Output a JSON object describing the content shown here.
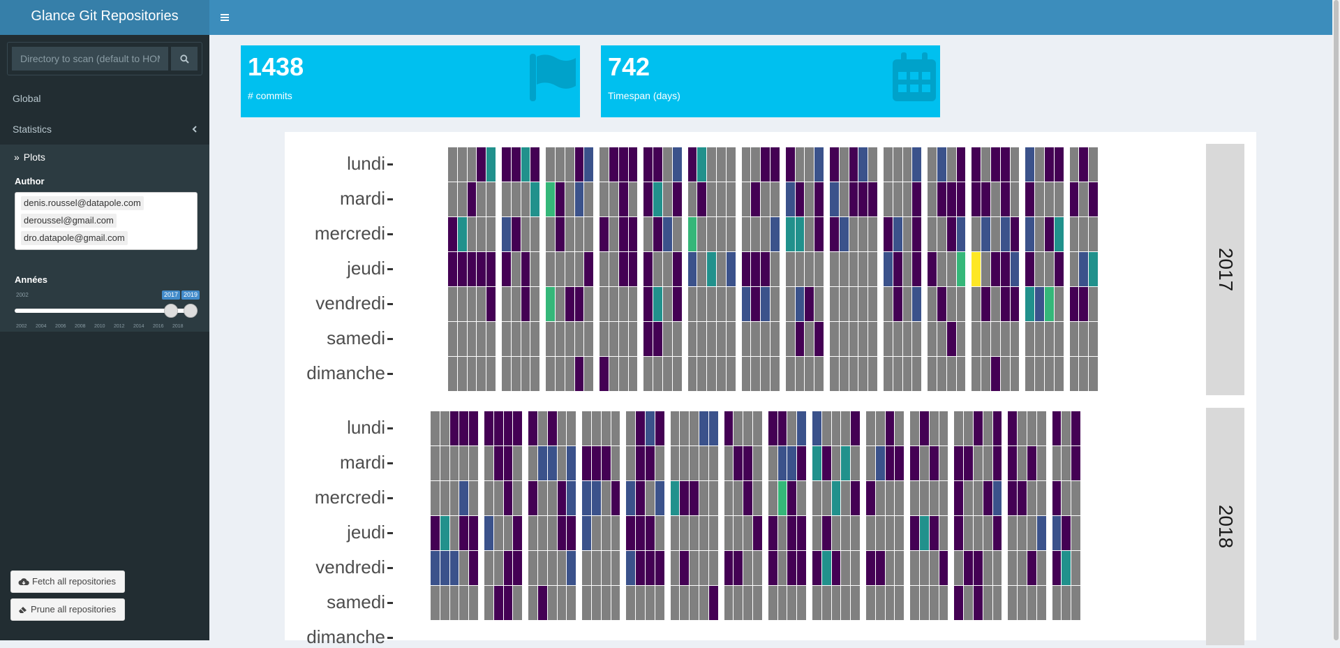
{
  "header": {
    "title": "Glance Git Repositories",
    "menu_icon": "bars-icon"
  },
  "sidebar": {
    "search": {
      "placeholder": "Directory to scan (default to HOME)",
      "value": "",
      "button_icon": "search-icon"
    },
    "menu": [
      {
        "label": "Global"
      },
      {
        "label": "Statistics",
        "icon": "chevron-left-icon"
      }
    ],
    "submenu": {
      "label": "Plots",
      "icon": "double-angle-right-icon"
    },
    "author_label": "Author",
    "authors": [
      "denis.roussel@datapole.com",
      "deroussel@gmail.com",
      "dro.datapole@gmail.com"
    ],
    "years_label": "Années",
    "slider": {
      "min": 2002,
      "max": 2019,
      "from": 2017,
      "to": 2019,
      "from_label": "2017",
      "to_label": "2019",
      "min_label": "2002",
      "ticks": [
        "2002",
        "2004",
        "2006",
        "2008",
        "2010",
        "2012",
        "2014",
        "2016",
        "2018"
      ]
    },
    "buttons": {
      "fetch": "Fetch all repositories",
      "prune": "Prune all repositories"
    }
  },
  "value_boxes": [
    {
      "value": "1438",
      "label": "# commits",
      "icon": "flag-icon"
    },
    {
      "value": "742",
      "label": "Timespan (days)",
      "icon": "calendar-icon"
    }
  ],
  "chart_data": {
    "type": "heatmap",
    "days": [
      "lundi",
      "mardi",
      "mercredi",
      "jeudi",
      "vendredi",
      "samedi",
      "dimanche"
    ],
    "facets": [
      "2017",
      "2018"
    ],
    "colors": {
      "none": "#808080",
      "low": "#440154",
      "mid": "#3b528b",
      "high": "#21918c",
      "higher": "#35b779",
      "max": "#fde725"
    },
    "weeks_per_facet": [
      53,
      53
    ]
  }
}
